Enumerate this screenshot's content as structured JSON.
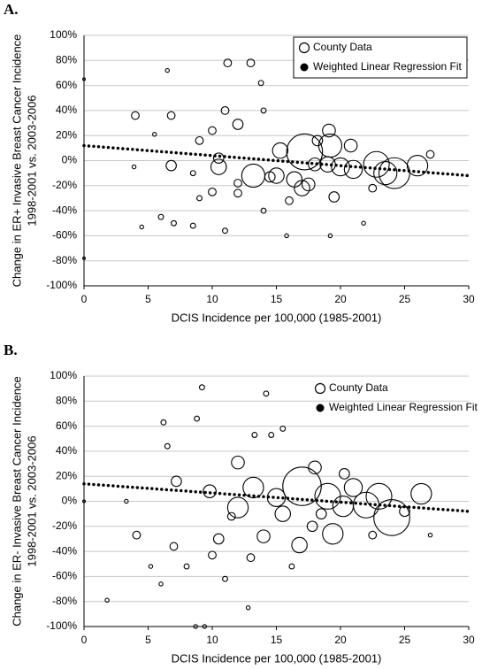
{
  "chart_data": [
    {
      "type": "scatter",
      "panel_label": "A.",
      "ylabel": [
        "Change in ER+ Invasive Breast Cancer Incidence",
        "1998-2001 vs. 2003-2006"
      ],
      "xlabel": "DCIS Incidence per 100,000 (1985-2001)",
      "xlim": [
        0,
        30
      ],
      "xticks": [
        0,
        5,
        10,
        15,
        20,
        25,
        30
      ],
      "ylim": [
        -100,
        100
      ],
      "yticks": [
        {
          "value": -100,
          "label": "-100%"
        },
        {
          "value": -80,
          "label": "-80%"
        },
        {
          "value": -60,
          "label": "-60%"
        },
        {
          "value": -40,
          "label": "-40%"
        },
        {
          "value": -20,
          "label": "-20%"
        },
        {
          "value": 0,
          "label": "0%"
        },
        {
          "value": 20,
          "label": "20%"
        },
        {
          "value": 40,
          "label": "40%"
        },
        {
          "value": 60,
          "label": "60%"
        },
        {
          "value": 80,
          "label": "80%"
        },
        {
          "value": 100,
          "label": "100%"
        }
      ],
      "grid": true,
      "legend": "upper right",
      "legend_box": true,
      "series": [
        {
          "name": "County Data",
          "marker": "open-bubble",
          "color": "#000000",
          "x": [
            17.2,
            19.2,
            15.3,
            13.2,
            10.5,
            12,
            11.2,
            13,
            4,
            6.8,
            22.8,
            24.2,
            26,
            23.5,
            21,
            20,
            16.4,
            15,
            17,
            19,
            18,
            20.8,
            19.1,
            19.5,
            10,
            9,
            8.5,
            9,
            10,
            12,
            14,
            15.8,
            19.2,
            21.8,
            7,
            4.5,
            6,
            8.5,
            11,
            13.8,
            14,
            11,
            12,
            16,
            14.5,
            6.5,
            3.9,
            5.5,
            6.8,
            10.5,
            18.2,
            17.5,
            27,
            0,
            0,
            22.5
          ],
          "values": [
            7,
            12,
            8,
            -12,
            -5,
            29,
            78,
            78,
            36,
            36,
            -3,
            -10,
            -4,
            -10,
            -7,
            -5,
            -15,
            -12,
            -22,
            -3,
            -3,
            12,
            24,
            -29,
            24,
            16,
            -10,
            -30,
            -25,
            -18,
            -40,
            -60,
            -60,
            -50,
            -50,
            -53,
            -45,
            -52,
            -56,
            62,
            40,
            40,
            -26,
            -32,
            -13,
            72,
            -5,
            21,
            -4,
            2,
            16,
            -19,
            5,
            65,
            -78,
            -22
          ],
          "sizes": [
            14,
            9,
            6,
            9,
            6,
            4,
            3,
            3,
            3,
            3,
            10,
            12,
            8,
            9,
            7,
            7,
            6,
            6,
            6,
            6,
            5,
            5,
            5,
            4,
            3,
            3,
            2,
            2,
            3,
            3,
            2,
            1.5,
            1.5,
            1.5,
            2,
            1.5,
            2,
            2,
            2,
            2,
            2,
            3,
            3,
            3,
            4,
            1.5,
            1.5,
            1.5,
            4,
            4,
            4,
            5,
            3,
            1,
            1,
            3
          ]
        },
        {
          "name": "Weighted Linear Regression Fit",
          "marker": "dotted-line",
          "color": "#000000",
          "x": [
            0,
            30
          ],
          "values": [
            12,
            -12
          ]
        }
      ]
    },
    {
      "type": "scatter",
      "panel_label": "B.",
      "ylabel": [
        "Change in ER- Invasive Breast Cancer Incidence",
        "1998-2001 vs. 2003-2006"
      ],
      "xlabel": "DCIS Incidence per 100,000 (1985-2001)",
      "xlim": [
        0,
        30
      ],
      "xticks": [
        0,
        5,
        10,
        15,
        20,
        25,
        30
      ],
      "ylim": [
        -100,
        100
      ],
      "yticks": [
        {
          "value": -100,
          "label": "-100%"
        },
        {
          "value": -80,
          "label": "-80%"
        },
        {
          "value": -60,
          "label": "-60%"
        },
        {
          "value": -40,
          "label": "-40%"
        },
        {
          "value": -20,
          "label": "-20%"
        },
        {
          "value": 0,
          "label": "0%"
        },
        {
          "value": 20,
          "label": "20%"
        },
        {
          "value": 40,
          "label": "40%"
        },
        {
          "value": 60,
          "label": "60%"
        },
        {
          "value": 80,
          "label": "80%"
        },
        {
          "value": 100,
          "label": "100%"
        }
      ],
      "grid": true,
      "legend": "upper right",
      "legend_box": false,
      "series": [
        {
          "name": "County Data",
          "marker": "open-bubble",
          "color": "#000000",
          "x": [
            17,
            19,
            24,
            23,
            26.3,
            22,
            19.4,
            13.2,
            15.5,
            16.8,
            21,
            20.2,
            18,
            15,
            12,
            10.5,
            12,
            9.8,
            14,
            7.2,
            9.2,
            14.2,
            8.8,
            6.2,
            13.3,
            14.6,
            15.5,
            6.5,
            4.1,
            7,
            1.8,
            8.7,
            9.4,
            12.8,
            11,
            8,
            5.2,
            6,
            16.2,
            27,
            0,
            22.5,
            17.8,
            3.3,
            10,
            11.5,
            13,
            18.5,
            25,
            20.3
          ],
          "values": [
            12,
            4,
            -13,
            4,
            6,
            -3,
            -26,
            11,
            -10,
            -35,
            11,
            -4,
            27,
            3,
            -5,
            -30,
            31,
            8,
            -28,
            16,
            91,
            86,
            66,
            63,
            53,
            53,
            58,
            44,
            -27,
            -36,
            -79,
            -100,
            -100,
            -85,
            -62,
            -52,
            -52,
            -66,
            -52,
            -27,
            0,
            -27,
            -20,
            0,
            -43,
            -12,
            -45,
            -10,
            -8,
            22
          ],
          "sizes": [
            15,
            10,
            14,
            10,
            8,
            10,
            8,
            8,
            6,
            6,
            7,
            8,
            5,
            7,
            8,
            4,
            5,
            5,
            5,
            4,
            2,
            2,
            2,
            2,
            2,
            2,
            2,
            2,
            3,
            3,
            1.5,
            1.5,
            1.5,
            1.5,
            2,
            2,
            1.5,
            1.5,
            2,
            1.5,
            1,
            3,
            4,
            1.5,
            3,
            3,
            3,
            4,
            4,
            4
          ]
        },
        {
          "name": "Weighted Linear Regression Fit",
          "marker": "dotted-line",
          "color": "#000000",
          "x": [
            0,
            30
          ],
          "values": [
            14,
            -8
          ]
        }
      ]
    }
  ]
}
